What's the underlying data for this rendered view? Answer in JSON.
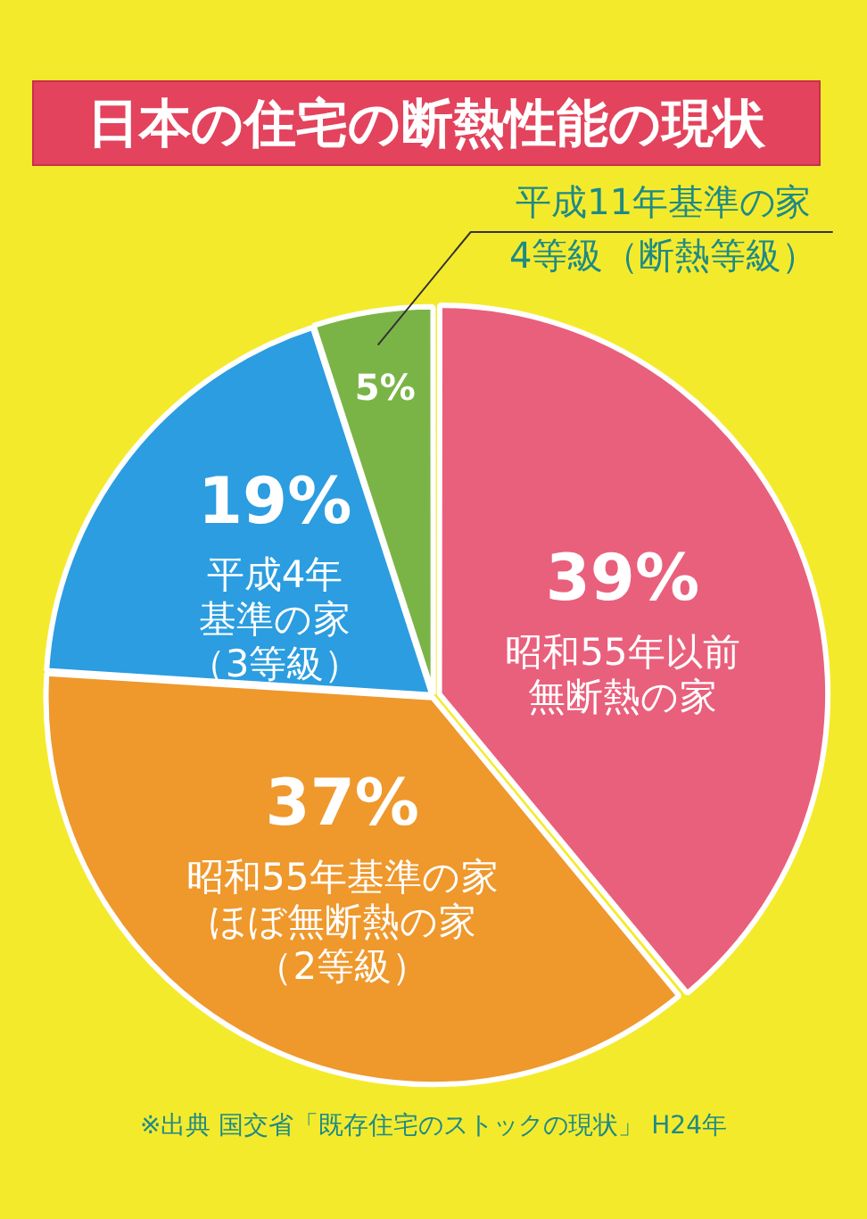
{
  "chart_data": {
    "type": "pie",
    "title": "日本の住宅の断熱性能の現状",
    "categories": [
      "昭和55年以前無断熱の家",
      "昭和55年基準の家ほぼ無断熱の家（2等級）",
      "平成4年基準の家（3等級）",
      "平成11年基準の家4等級（断熱等級）"
    ],
    "values": [
      39,
      37,
      19,
      5
    ],
    "colors": [
      "#e9607c",
      "#ef982c",
      "#2b9de0",
      "#7bb446"
    ],
    "value_labels": [
      "39%",
      "37%",
      "19%",
      "5%"
    ],
    "annotations": [
      "※出典  国交省「既存住宅のストックの現状」 H24年"
    ]
  }
}
